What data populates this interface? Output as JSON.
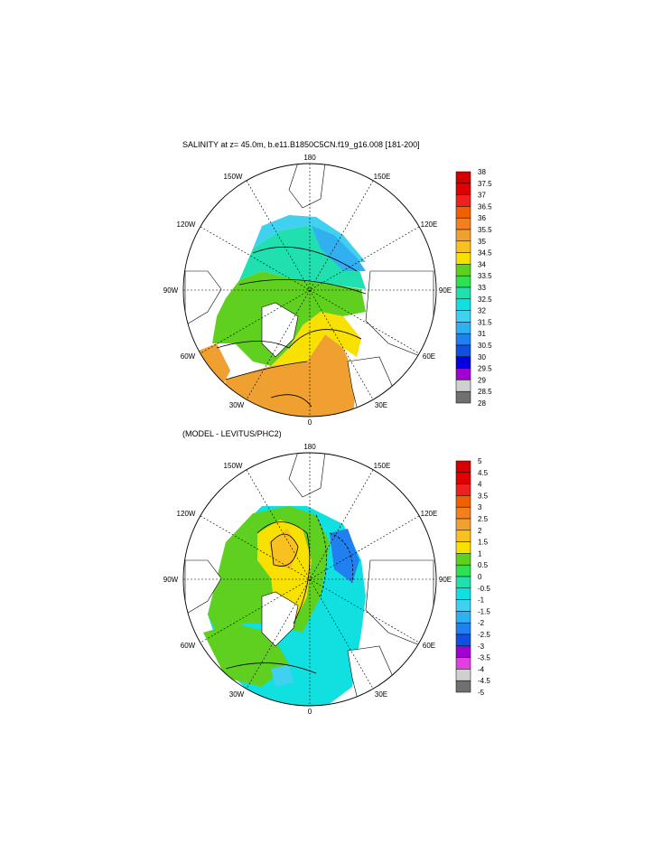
{
  "panels": [
    {
      "id": "top",
      "title": "SALINITY at z=  45.0m, b.e11.B1850C5CN.f19_g16.008 [181-200]",
      "lon_labels": {
        "n180": "180",
        "n150w": "150W",
        "n150e": "150E",
        "n120w": "120W",
        "n120e": "120E",
        "n90w": "90W",
        "n90e": "90E",
        "n60w": "60W",
        "n60e": "60E",
        "n30w": "30W",
        "n30e": "30E",
        "n0": "0"
      },
      "colorbar": {
        "labels": [
          "38",
          "37.5",
          "37",
          "36.5",
          "36",
          "35.5",
          "35",
          "34.5",
          "34",
          "33.5",
          "33",
          "32.5",
          "32",
          "31.5",
          "31",
          "30.5",
          "30",
          "29.5",
          "29",
          "28.5",
          "28"
        ],
        "colors": [
          "#d40000",
          "#e00000",
          "#f02020",
          "#f06000",
          "#f08020",
          "#f0a030",
          "#f8c020",
          "#f8e000",
          "#60d020",
          "#30e050",
          "#20e0b0",
          "#10e0e0",
          "#40d0f0",
          "#30b0f0",
          "#2080f0",
          "#1050e0",
          "#0000e0",
          "#a000d0",
          "#d0d0d0",
          "#707070"
        ]
      }
    },
    {
      "id": "bottom",
      "title": "(MODEL - LEVITUS/PHC2)",
      "lon_labels": {
        "n180": "180",
        "n150w": "150W",
        "n150e": "150E",
        "n120w": "120W",
        "n120e": "120E",
        "n90w": "90W",
        "n90e": "90E",
        "n60w": "60W",
        "n60e": "60E",
        "n30w": "30W",
        "n30e": "30E",
        "n0": "0"
      },
      "colorbar": {
        "labels": [
          "5",
          "4.5",
          "4",
          "3.5",
          "3",
          "2.5",
          "2",
          "1.5",
          "1",
          "0.5",
          "0",
          "-0.5",
          "-1",
          "-1.5",
          "-2",
          "-2.5",
          "-3",
          "-3.5",
          "-4",
          "-4.5",
          "-5"
        ],
        "colors": [
          "#d40000",
          "#e00000",
          "#f02020",
          "#f06000",
          "#f08020",
          "#f0a030",
          "#f8c020",
          "#f8e000",
          "#60d020",
          "#30e050",
          "#20e0b0",
          "#10e0e0",
          "#40d0f0",
          "#30b0f0",
          "#2080f0",
          "#1050e0",
          "#a000d0",
          "#e040e0",
          "#d0d0d0",
          "#707070"
        ]
      }
    }
  ]
}
